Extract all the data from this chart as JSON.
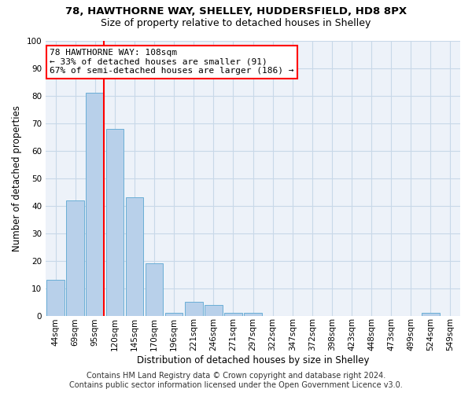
{
  "title_line1": "78, HAWTHORNE WAY, SHELLEY, HUDDERSFIELD, HD8 8PX",
  "title_line2": "Size of property relative to detached houses in Shelley",
  "xlabel": "Distribution of detached houses by size in Shelley",
  "ylabel": "Number of detached properties",
  "bar_categories": [
    "44sqm",
    "69sqm",
    "95sqm",
    "120sqm",
    "145sqm",
    "170sqm",
    "196sqm",
    "221sqm",
    "246sqm",
    "271sqm",
    "297sqm",
    "322sqm",
    "347sqm",
    "372sqm",
    "398sqm",
    "423sqm",
    "448sqm",
    "473sqm",
    "499sqm",
    "524sqm",
    "549sqm"
  ],
  "bar_values": [
    13,
    42,
    81,
    68,
    43,
    19,
    1,
    5,
    4,
    1,
    1,
    0,
    0,
    0,
    0,
    0,
    0,
    0,
    0,
    1,
    0
  ],
  "bar_color": "#b8d0ea",
  "bar_edge_color": "#6aaed6",
  "redline_x": 2.45,
  "annotation_text": "78 HAWTHORNE WAY: 108sqm\n← 33% of detached houses are smaller (91)\n67% of semi-detached houses are larger (186) →",
  "annotation_box_color": "white",
  "annotation_box_edge_color": "red",
  "redline_color": "red",
  "ylim": [
    0,
    100
  ],
  "yticks": [
    0,
    10,
    20,
    30,
    40,
    50,
    60,
    70,
    80,
    90,
    100
  ],
  "grid_color": "#c8d8e8",
  "background_color": "#edf2f9",
  "footer_line1": "Contains HM Land Registry data © Crown copyright and database right 2024.",
  "footer_line2": "Contains public sector information licensed under the Open Government Licence v3.0.",
  "title_fontsize": 9.5,
  "subtitle_fontsize": 9,
  "axis_label_fontsize": 8.5,
  "tick_fontsize": 7.5,
  "annotation_fontsize": 8,
  "footer_fontsize": 7
}
